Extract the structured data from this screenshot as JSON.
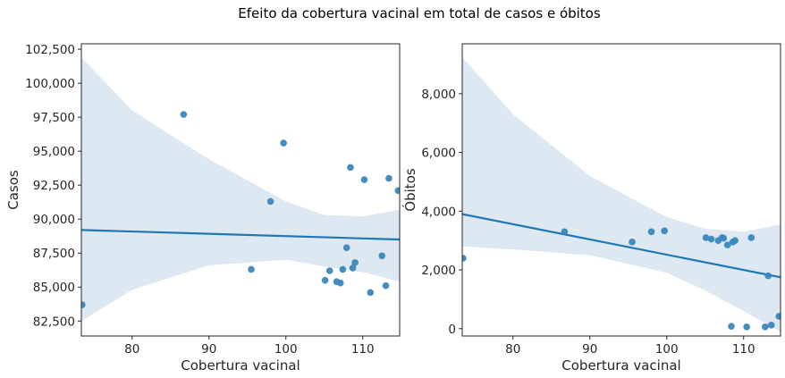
{
  "title": "Efeito da cobertura vacinal em total de casos e óbitos",
  "chart_data": [
    {
      "type": "scatter",
      "xlabel": "Cobertura vacinal",
      "ylabel": "Casos",
      "xlim": [
        73.4,
        114.8
      ],
      "ylim": [
        81400,
        102900
      ],
      "xticks": [
        80,
        90,
        100,
        110
      ],
      "xtick_labels": [
        "80",
        "90",
        "100",
        "110"
      ],
      "yticks": [
        82500,
        85000,
        87500,
        90000,
        92500,
        95000,
        97500,
        100000,
        102500
      ],
      "ytick_labels": [
        "82,500",
        "85,000",
        "87,500",
        "90,000",
        "92,500",
        "95,000",
        "97,500",
        "100,000",
        "102,500"
      ],
      "points": [
        [
          73.5,
          83700
        ],
        [
          86.7,
          97700
        ],
        [
          95.5,
          86300
        ],
        [
          98.0,
          91300
        ],
        [
          99.7,
          95600
        ],
        [
          105.1,
          85500
        ],
        [
          105.7,
          86200
        ],
        [
          106.6,
          85400
        ],
        [
          107.1,
          85300
        ],
        [
          107.4,
          86300
        ],
        [
          107.9,
          87900
        ],
        [
          108.4,
          93800
        ],
        [
          108.7,
          86400
        ],
        [
          109.0,
          86800
        ],
        [
          110.2,
          92900
        ],
        [
          111.0,
          84600
        ],
        [
          112.5,
          87300
        ],
        [
          113.0,
          85100
        ],
        [
          113.4,
          93000
        ],
        [
          114.6,
          92100
        ]
      ],
      "regression": [
        [
          73.4,
          89200
        ],
        [
          114.8,
          88500
        ]
      ],
      "ci_upper": [
        [
          73.4,
          101900
        ],
        [
          80,
          98000
        ],
        [
          90,
          94400
        ],
        [
          100,
          91300
        ],
        [
          105,
          90300
        ],
        [
          110,
          90200
        ],
        [
          114.8,
          90700
        ]
      ],
      "ci_lower": [
        [
          73.4,
          82500
        ],
        [
          80,
          84800
        ],
        [
          90,
          86600
        ],
        [
          100,
          87000
        ],
        [
          105,
          86500
        ],
        [
          110,
          86100
        ],
        [
          114.8,
          85400
        ]
      ],
      "point_color": "#3a87bb",
      "line_color": "#1f77b4",
      "band_color": "#dde8f3"
    },
    {
      "type": "scatter",
      "xlabel": "Cobertura vacinal",
      "ylabel": "Óbitos",
      "xlim": [
        73.4,
        114.8
      ],
      "ylim": [
        -250,
        9700
      ],
      "xticks": [
        80,
        90,
        100,
        110
      ],
      "xtick_labels": [
        "80",
        "90",
        "100",
        "110"
      ],
      "yticks": [
        0,
        2000,
        4000,
        6000,
        8000
      ],
      "ytick_labels": [
        "0",
        "2,000",
        "4,000",
        "6,000",
        "8,000"
      ],
      "points": [
        [
          73.5,
          2400
        ],
        [
          86.7,
          3300
        ],
        [
          95.5,
          2950
        ],
        [
          98.0,
          3300
        ],
        [
          99.7,
          3330
        ],
        [
          105.1,
          3100
        ],
        [
          105.8,
          3050
        ],
        [
          106.7,
          3000
        ],
        [
          107.2,
          3100
        ],
        [
          107.4,
          3080
        ],
        [
          107.9,
          2850
        ],
        [
          108.4,
          80
        ],
        [
          108.6,
          2950
        ],
        [
          108.9,
          3000
        ],
        [
          110.4,
          60
        ],
        [
          111.0,
          3100
        ],
        [
          112.8,
          60
        ],
        [
          113.2,
          1800
        ],
        [
          113.6,
          120
        ],
        [
          114.6,
          420
        ]
      ],
      "regression": [
        [
          73.4,
          3900
        ],
        [
          114.8,
          1750
        ]
      ],
      "ci_upper": [
        [
          73.4,
          9250
        ],
        [
          80,
          7300
        ],
        [
          90,
          5200
        ],
        [
          100,
          3800
        ],
        [
          105,
          3400
        ],
        [
          110,
          3300
        ],
        [
          114.8,
          3550
        ]
      ],
      "ci_lower": [
        [
          73.4,
          2800
        ],
        [
          80,
          2700
        ],
        [
          90,
          2500
        ],
        [
          100,
          1900
        ],
        [
          105,
          1300
        ],
        [
          110,
          600
        ],
        [
          114.8,
          -100
        ]
      ],
      "point_color": "#3a87bb",
      "line_color": "#1f77b4",
      "band_color": "#dde8f3"
    }
  ]
}
